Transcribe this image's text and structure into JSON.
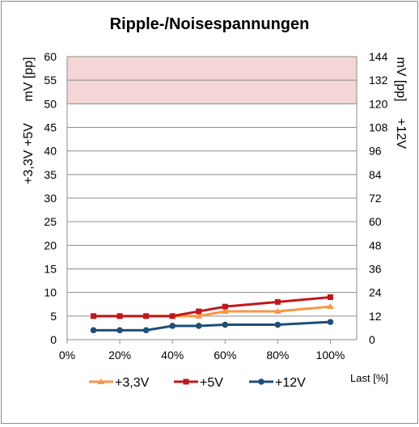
{
  "chart_data": {
    "type": "line",
    "title": "Ripple-/Noisespannungen",
    "xlabel": "Last [%]",
    "x_ticks": [
      "0%",
      "20%",
      "40%",
      "60%",
      "80%",
      "100%"
    ],
    "xlim": [
      0,
      110
    ],
    "ylabel_left_a": "+3,3V +5V",
    "ylabel_left_b": "mV [pp]",
    "ylabel_right_a": "+12V",
    "ylabel_right_b": "mV [pp]",
    "ylim_left": [
      0,
      60
    ],
    "ylim_right": [
      0,
      144
    ],
    "y_ticks_left": [
      "0",
      "5",
      "10",
      "15",
      "20",
      "25",
      "30",
      "35",
      "40",
      "45",
      "50",
      "55",
      "60"
    ],
    "y_ticks_right": [
      "0",
      "12",
      "24",
      "36",
      "48",
      "60",
      "72",
      "84",
      "96",
      "108",
      "120",
      "132",
      "144"
    ],
    "limit_band_left": [
      50,
      60
    ],
    "grid": true,
    "legend_position": "bottom",
    "series": [
      {
        "name": "+3,3V",
        "color": "#f79646",
        "marker": "triangle",
        "axis": "left",
        "x": [
          10,
          20,
          30,
          40,
          50,
          60,
          80,
          100
        ],
        "y": [
          5,
          5,
          5,
          5,
          5,
          6,
          6,
          7
        ]
      },
      {
        "name": "+5V",
        "color": "#c0171c",
        "marker": "square",
        "axis": "left",
        "x": [
          10,
          20,
          30,
          40,
          50,
          60,
          80,
          100
        ],
        "y": [
          5,
          5,
          5,
          5,
          6,
          7,
          8,
          9
        ]
      },
      {
        "name": "+12V",
        "color": "#1f4e79",
        "marker": "circle",
        "axis": "right",
        "x": [
          10,
          20,
          30,
          40,
          50,
          60,
          80,
          100
        ],
        "y": [
          4.8,
          4.8,
          4.8,
          7,
          7,
          7.6,
          7.6,
          9
        ]
      }
    ]
  }
}
